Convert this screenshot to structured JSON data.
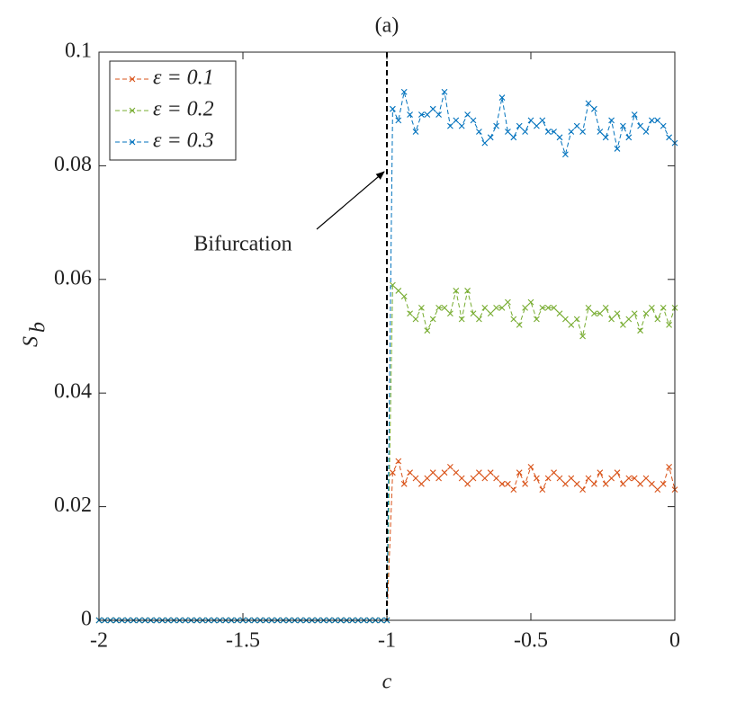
{
  "chart_data": {
    "type": "line",
    "title": "(a)",
    "xlabel": "c",
    "ylabel": "S",
    "ylabel_subscript": "b",
    "annotation": "Bifurcation",
    "vline": -1,
    "xlim": [
      -2,
      0
    ],
    "ylim": [
      0,
      0.1
    ],
    "xticks": [
      -2,
      -1.5,
      -1,
      -0.5,
      0
    ],
    "yticks": [
      0,
      0.02,
      0.04,
      0.06,
      0.08,
      0.1
    ],
    "legend": "upper left",
    "x": [
      -2,
      -1.98,
      -1.96,
      -1.94,
      -1.92,
      -1.9,
      -1.88,
      -1.86,
      -1.84,
      -1.82,
      -1.8,
      -1.78,
      -1.76,
      -1.74,
      -1.72,
      -1.7,
      -1.68,
      -1.66,
      -1.64,
      -1.62,
      -1.6,
      -1.58,
      -1.56,
      -1.54,
      -1.52,
      -1.5,
      -1.48,
      -1.46,
      -1.44,
      -1.42,
      -1.4,
      -1.38,
      -1.36,
      -1.34,
      -1.32,
      -1.3,
      -1.28,
      -1.26,
      -1.24,
      -1.22,
      -1.2,
      -1.18,
      -1.16,
      -1.14,
      -1.12,
      -1.1,
      -1.08,
      -1.06,
      -1.04,
      -1.02,
      -1,
      -0.98,
      -0.96,
      -0.94,
      -0.92,
      -0.9,
      -0.88,
      -0.86,
      -0.84,
      -0.82,
      -0.8,
      -0.78,
      -0.76,
      -0.74,
      -0.72,
      -0.7,
      -0.68,
      -0.66,
      -0.64,
      -0.62,
      -0.6,
      -0.58,
      -0.56,
      -0.54,
      -0.52,
      -0.5,
      -0.48,
      -0.46,
      -0.44,
      -0.42,
      -0.4,
      -0.38,
      -0.36,
      -0.34,
      -0.32,
      -0.3,
      -0.28,
      -0.26,
      -0.24,
      -0.22,
      -0.2,
      -0.18,
      -0.16,
      -0.14,
      -0.12,
      -0.1,
      -0.08,
      -0.06,
      -0.04,
      -0.02,
      0
    ],
    "series": [
      {
        "name": "ε = 0.1",
        "color": "#d95319",
        "values": [
          0,
          0,
          0,
          0,
          0,
          0,
          0,
          0,
          0,
          0,
          0,
          0,
          0,
          0,
          0,
          0,
          0,
          0,
          0,
          0,
          0,
          0,
          0,
          0,
          0,
          0,
          0,
          0,
          0,
          0,
          0,
          0,
          0,
          0,
          0,
          0,
          0,
          0,
          0,
          0,
          0,
          0,
          0,
          0,
          0,
          0,
          0,
          0,
          0,
          0,
          0,
          0.026,
          0.028,
          0.024,
          0.026,
          0.025,
          0.024,
          0.025,
          0.026,
          0.025,
          0.026,
          0.027,
          0.026,
          0.025,
          0.024,
          0.025,
          0.026,
          0.025,
          0.026,
          0.025,
          0.024,
          0.024,
          0.023,
          0.026,
          0.024,
          0.027,
          0.025,
          0.023,
          0.025,
          0.026,
          0.025,
          0.024,
          0.025,
          0.024,
          0.023,
          0.025,
          0.024,
          0.026,
          0.024,
          0.025,
          0.026,
          0.024,
          0.025,
          0.025,
          0.024,
          0.025,
          0.024,
          0.023,
          0.024,
          0.027,
          0.023
        ]
      },
      {
        "name": "ε = 0.2",
        "color": "#77ac30",
        "values": [
          0,
          0,
          0,
          0,
          0,
          0,
          0,
          0,
          0,
          0,
          0,
          0,
          0,
          0,
          0,
          0,
          0,
          0,
          0,
          0,
          0,
          0,
          0,
          0,
          0,
          0,
          0,
          0,
          0,
          0,
          0,
          0,
          0,
          0,
          0,
          0,
          0,
          0,
          0,
          0,
          0,
          0,
          0,
          0,
          0,
          0,
          0,
          0,
          0,
          0,
          0,
          0.059,
          0.058,
          0.057,
          0.054,
          0.053,
          0.055,
          0.051,
          0.053,
          0.055,
          0.055,
          0.054,
          0.058,
          0.053,
          0.058,
          0.054,
          0.053,
          0.055,
          0.054,
          0.055,
          0.055,
          0.056,
          0.053,
          0.052,
          0.055,
          0.056,
          0.053,
          0.055,
          0.055,
          0.055,
          0.054,
          0.053,
          0.052,
          0.053,
          0.05,
          0.055,
          0.054,
          0.054,
          0.055,
          0.053,
          0.054,
          0.052,
          0.053,
          0.054,
          0.051,
          0.054,
          0.055,
          0.053,
          0.055,
          0.052,
          0.055
        ]
      },
      {
        "name": "ε = 0.3",
        "color": "#0072bd",
        "values": [
          0,
          0,
          0,
          0,
          0,
          0,
          0,
          0,
          0,
          0,
          0,
          0,
          0,
          0,
          0,
          0,
          0,
          0,
          0,
          0,
          0,
          0,
          0,
          0,
          0,
          0,
          0,
          0,
          0,
          0,
          0,
          0,
          0,
          0,
          0,
          0,
          0,
          0,
          0,
          0,
          0,
          0,
          0,
          0,
          0,
          0,
          0,
          0,
          0,
          0,
          0,
          0.09,
          0.088,
          0.093,
          0.089,
          0.086,
          0.089,
          0.089,
          0.09,
          0.089,
          0.093,
          0.087,
          0.088,
          0.087,
          0.089,
          0.088,
          0.086,
          0.084,
          0.085,
          0.087,
          0.092,
          0.086,
          0.085,
          0.087,
          0.086,
          0.088,
          0.087,
          0.088,
          0.086,
          0.086,
          0.085,
          0.082,
          0.086,
          0.087,
          0.086,
          0.091,
          0.09,
          0.086,
          0.085,
          0.088,
          0.083,
          0.087,
          0.085,
          0.089,
          0.087,
          0.086,
          0.088,
          0.088,
          0.087,
          0.085,
          0.084
        ]
      }
    ]
  }
}
